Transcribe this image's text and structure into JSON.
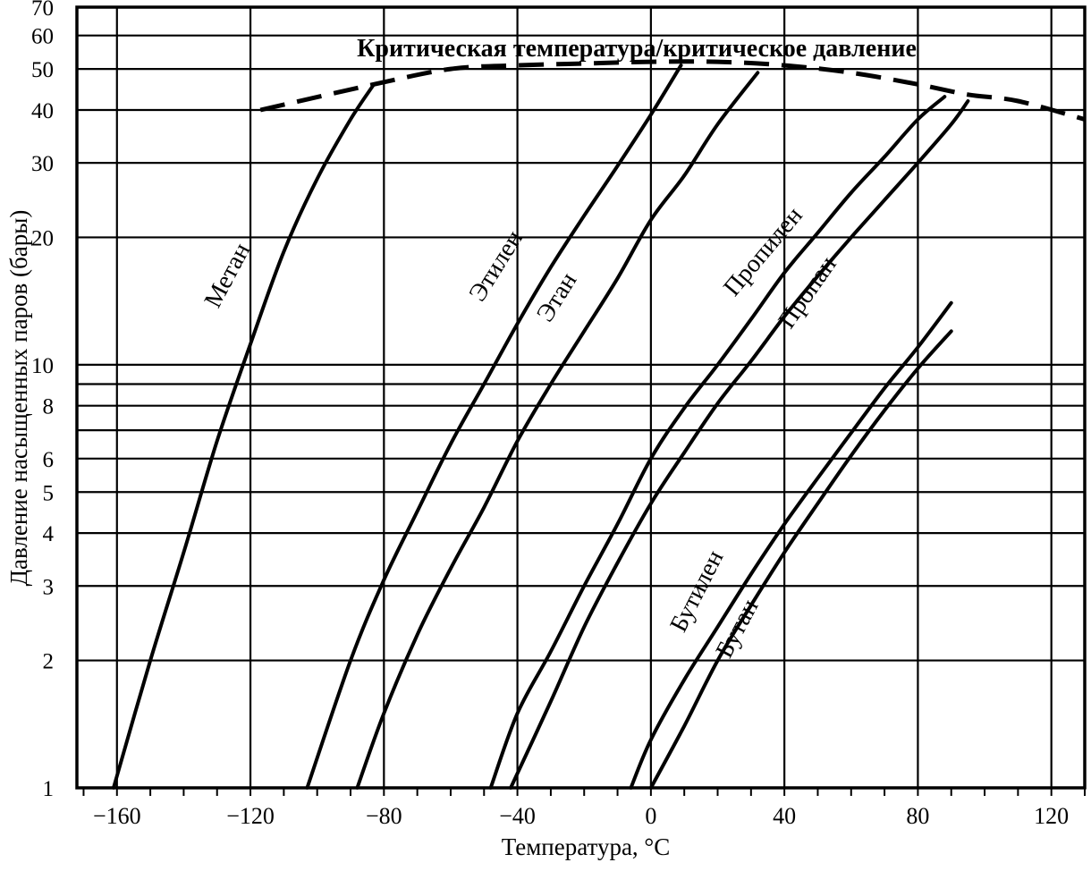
{
  "chart_data": {
    "type": "line",
    "title": "Критическая температура/критическое давление",
    "xlabel": "Температура, °C",
    "ylabel": "Давление насыщенных паров (бары)",
    "xlim": [
      -172,
      130
    ],
    "ylim": [
      1,
      70
    ],
    "yscale": "log",
    "grid": true,
    "legend": "none",
    "xticks": [
      -160,
      -120,
      -80,
      -40,
      0,
      40,
      80,
      120
    ],
    "xtick_labels": [
      "−160",
      "−120",
      "−80",
      "−40",
      "0",
      "40",
      "80",
      "120"
    ],
    "yticks": [
      1,
      2,
      3,
      4,
      5,
      6,
      8,
      10,
      20,
      30,
      40,
      50,
      60,
      70
    ],
    "ytick_labels": [
      "1",
      "2",
      "3",
      "4",
      "5",
      "6",
      "8",
      "10",
      "20",
      "30",
      "40",
      "50",
      "60",
      "70"
    ],
    "extra_grid_y": [
      7,
      9
    ],
    "series": [
      {
        "name": "Метан",
        "x": [
          -161,
          -150,
          -140,
          -130,
          -120,
          -110,
          -100,
          -90,
          -83
        ],
        "y": [
          1,
          2.0,
          3.6,
          6.6,
          11.2,
          18.5,
          27.5,
          38,
          46
        ]
      },
      {
        "name": "Этилен",
        "x": [
          -103,
          -90,
          -80,
          -70,
          -60,
          -50,
          -40,
          -30,
          -20,
          -10,
          0,
          9
        ],
        "y": [
          1,
          2.0,
          3.1,
          4.5,
          6.5,
          9,
          12.5,
          17,
          22.5,
          29.5,
          39,
          51
        ]
      },
      {
        "name": "Этан",
        "x": [
          -88,
          -80,
          -70,
          -60,
          -50,
          -40,
          -30,
          -20,
          -10,
          0,
          10,
          20,
          32
        ],
        "y": [
          1,
          1.5,
          2.3,
          3.3,
          4.6,
          6.6,
          9,
          12,
          16,
          22,
          28,
          37,
          49
        ]
      },
      {
        "name": "Пропилен",
        "x": [
          -48,
          -40,
          -30,
          -20,
          -10,
          0,
          10,
          20,
          30,
          40,
          50,
          60,
          70,
          80,
          88
        ],
        "y": [
          1,
          1.5,
          2.1,
          3.0,
          4.2,
          6,
          7.9,
          10,
          12.8,
          16.5,
          20.5,
          25.5,
          31,
          38,
          43
        ]
      },
      {
        "name": "Пропан",
        "x": [
          -42,
          -30,
          -20,
          -10,
          0,
          10,
          20,
          30,
          40,
          50,
          60,
          70,
          80,
          90,
          95
        ],
        "y": [
          1,
          1.6,
          2.4,
          3.4,
          4.7,
          6.2,
          8.1,
          10.2,
          13,
          16.2,
          20,
          24.5,
          30,
          37,
          42
        ]
      },
      {
        "name": "Бутилен",
        "x": [
          -6,
          0,
          10,
          20,
          30,
          40,
          50,
          60,
          70,
          80,
          90
        ],
        "y": [
          1,
          1.3,
          1.8,
          2.4,
          3.2,
          4.2,
          5.4,
          6.9,
          8.8,
          11,
          14
        ]
      },
      {
        "name": "Бутан",
        "x": [
          0,
          10,
          20,
          30,
          40,
          50,
          60,
          70,
          80,
          90
        ],
        "y": [
          1,
          1.4,
          2.0,
          2.7,
          3.6,
          4.7,
          6.1,
          7.8,
          9.8,
          12
        ]
      }
    ],
    "critical_curve": {
      "x": [
        -117,
        -83,
        -60,
        -40,
        -20,
        0,
        20,
        40,
        60,
        80,
        95,
        110,
        130
      ],
      "y": [
        40,
        46,
        50,
        51,
        51.5,
        52,
        52,
        51,
        49,
        46,
        43.5,
        42,
        38
      ]
    }
  }
}
